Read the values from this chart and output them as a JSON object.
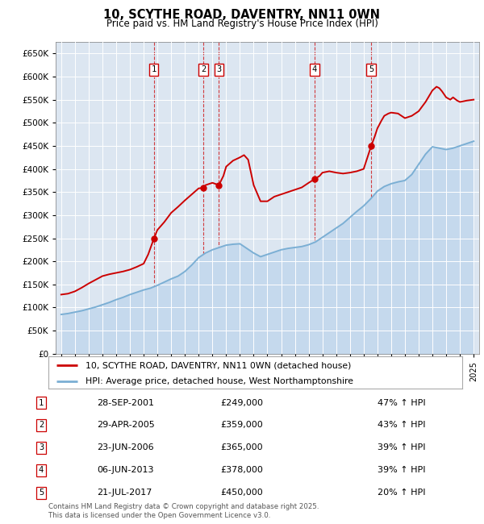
{
  "title": "10, SCYTHE ROAD, DAVENTRY, NN11 0WN",
  "subtitle": "Price paid vs. HM Land Registry's House Price Index (HPI)",
  "legend_house": "10, SCYTHE ROAD, DAVENTRY, NN11 0WN (detached house)",
  "legend_hpi": "HPI: Average price, detached house, West Northamptonshire",
  "footer": "Contains HM Land Registry data © Crown copyright and database right 2025.\nThis data is licensed under the Open Government Licence v3.0.",
  "transactions": [
    {
      "num": 1,
      "date": "28-SEP-2001",
      "year": 2001.74,
      "price": 249000,
      "hpi_rel": "47% ↑ HPI"
    },
    {
      "num": 2,
      "date": "29-APR-2005",
      "year": 2005.33,
      "price": 359000,
      "hpi_rel": "43% ↑ HPI"
    },
    {
      "num": 3,
      "date": "23-JUN-2006",
      "year": 2006.47,
      "price": 365000,
      "hpi_rel": "39% ↑ HPI"
    },
    {
      "num": 4,
      "date": "06-JUN-2013",
      "year": 2013.43,
      "price": 378000,
      "hpi_rel": "39% ↑ HPI"
    },
    {
      "num": 5,
      "date": "21-JUL-2017",
      "year": 2017.55,
      "price": 450000,
      "hpi_rel": "20% ↑ HPI"
    }
  ],
  "house_color": "#cc0000",
  "hpi_color": "#7bafd4",
  "hpi_fill_color": "#c5d9ed",
  "plot_bg": "#dce6f1",
  "ylim": [
    0,
    675000
  ],
  "xlim_start": 1994.6,
  "xlim_end": 2025.4,
  "hpi_years": [
    1995,
    1995.5,
    1996,
    1996.5,
    1997,
    1997.5,
    1998,
    1998.5,
    1999,
    1999.5,
    2000,
    2000.5,
    2001,
    2001.5,
    2002,
    2002.5,
    2003,
    2003.5,
    2004,
    2004.5,
    2005,
    2005.5,
    2006,
    2006.5,
    2007,
    2007.5,
    2008,
    2008.5,
    2009,
    2009.5,
    2010,
    2010.5,
    2011,
    2011.5,
    2012,
    2012.5,
    2013,
    2013.5,
    2014,
    2014.5,
    2015,
    2015.5,
    2016,
    2016.5,
    2017,
    2017.5,
    2018,
    2018.5,
    2019,
    2019.5,
    2020,
    2020.5,
    2021,
    2021.5,
    2022,
    2022.5,
    2023,
    2023.5,
    2024,
    2024.5,
    2025
  ],
  "hpi_values": [
    85000,
    87000,
    90000,
    93000,
    97000,
    101000,
    106000,
    111000,
    117000,
    122000,
    128000,
    133000,
    138000,
    142000,
    148000,
    155000,
    162000,
    168000,
    178000,
    192000,
    208000,
    218000,
    225000,
    230000,
    235000,
    237000,
    238000,
    228000,
    218000,
    210000,
    215000,
    220000,
    225000,
    228000,
    230000,
    232000,
    236000,
    242000,
    252000,
    262000,
    272000,
    282000,
    295000,
    308000,
    320000,
    335000,
    352000,
    362000,
    368000,
    372000,
    375000,
    388000,
    410000,
    432000,
    448000,
    445000,
    442000,
    445000,
    450000,
    455000,
    460000
  ],
  "house_years": [
    1995,
    1995.5,
    1996,
    1996.5,
    1997,
    1997.5,
    1998,
    1998.5,
    1999,
    1999.5,
    2000,
    2000.5,
    2001,
    2001.33,
    2001.74,
    2002,
    2002.5,
    2003,
    2003.5,
    2004,
    2004.5,
    2005,
    2005.33,
    2005.5,
    2006,
    2006.47,
    2006.8,
    2007,
    2007.5,
    2008,
    2008.3,
    2008.6,
    2009,
    2009.5,
    2010,
    2010.5,
    2011,
    2011.5,
    2012,
    2012.5,
    2013,
    2013.43,
    2013.8,
    2014,
    2014.5,
    2015,
    2015.5,
    2016,
    2016.5,
    2017,
    2017.55,
    2017.8,
    2018,
    2018.3,
    2018.5,
    2018.8,
    2019,
    2019.5,
    2020,
    2020.5,
    2021,
    2021.5,
    2022,
    2022.3,
    2022.5,
    2022.7,
    2023,
    2023.3,
    2023.5,
    2023.8,
    2024,
    2024.5,
    2025
  ],
  "house_values": [
    128000,
    130000,
    135000,
    143000,
    152000,
    160000,
    168000,
    172000,
    175000,
    178000,
    182000,
    188000,
    195000,
    215000,
    249000,
    268000,
    285000,
    305000,
    318000,
    332000,
    345000,
    358000,
    359000,
    365000,
    370000,
    365000,
    385000,
    405000,
    418000,
    425000,
    430000,
    420000,
    365000,
    330000,
    330000,
    340000,
    345000,
    350000,
    355000,
    360000,
    370000,
    378000,
    385000,
    392000,
    395000,
    392000,
    390000,
    392000,
    395000,
    400000,
    450000,
    470000,
    488000,
    505000,
    515000,
    520000,
    522000,
    520000,
    510000,
    515000,
    525000,
    545000,
    570000,
    578000,
    575000,
    568000,
    555000,
    550000,
    555000,
    548000,
    545000,
    548000,
    550000
  ]
}
